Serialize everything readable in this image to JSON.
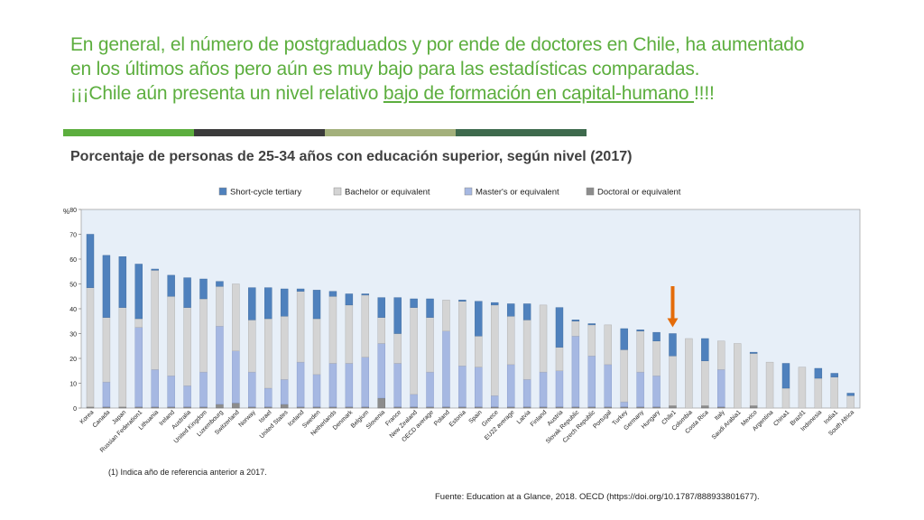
{
  "headline": {
    "line1": "En general, el número de postgraduados y por ende de doctores en Chile, ha aumentado",
    "line2": "en los últimos años pero aún es muy bajo para las estadísticas comparadas.",
    "line3_before": "¡¡¡Chile aún presenta un nivel relativo ",
    "line3_underlined": "bajo de formación en capital-humano ",
    "line3_after": "!!!!"
  },
  "colors": {
    "headline": "#5cae3e",
    "divider_segments": [
      "#5cae3e",
      "#3b3b3b",
      "#a3b07b",
      "#3e6a4d"
    ],
    "short_cycle": "#4f81bd",
    "bachelor": "#d4d4d4",
    "master": "#a6b8e2",
    "doctoral": "#8c8c8c",
    "arrow": "#e46c0a",
    "plot_bg": "#e7eff8"
  },
  "subtitle": "Porcentaje de personas de 25-34 años con educación superior, según nivel (2017)",
  "footnote": "(1) Indica año de referencia anterior a 2017.",
  "source": "Fuente:  Education at a Glance, 2018. OECD (https://doi.org/10.1787/888933801677).",
  "chart_data": {
    "type": "bar",
    "stacked": true,
    "ylabel": "%",
    "ylim": [
      0,
      80
    ],
    "yticks": [
      0,
      10,
      20,
      30,
      40,
      50,
      60,
      70,
      80
    ],
    "legend_position": "top",
    "highlight_category": "Chile1",
    "categories": [
      "Korea",
      "Canada",
      "Japan",
      "Russian Federation1",
      "Lithuania",
      "Ireland",
      "Australia",
      "United Kingdom",
      "Luxembourg",
      "Switzerland",
      "Norway",
      "Israel",
      "United States",
      "Iceland",
      "Sweden",
      "Netherlands",
      "Denmark",
      "Belgium",
      "Slovenia",
      "France",
      "New Zealand",
      "OECD average",
      "Poland",
      "Estonia",
      "Spain",
      "Greece",
      "EU22 average",
      "Latvia",
      "Finland",
      "Austria",
      "Slovak Republic",
      "Czech Republic",
      "Portugal",
      "Turkey",
      "Germany",
      "Hungary",
      "Chile1",
      "Colombia",
      "Costa Rica",
      "Italy",
      "Saudi Arabia1",
      "Mexico",
      "Argentina",
      "China1",
      "Brazil1",
      "Indonesia",
      "India1",
      "South Africa"
    ],
    "series": [
      {
        "name": "Doctoral or equivalent",
        "values": [
          0.5,
          0.5,
          0.5,
          0.5,
          0.5,
          0.5,
          0.5,
          0.5,
          1.5,
          2.0,
          0.5,
          0.5,
          1.5,
          0.5,
          0.5,
          0.5,
          0.5,
          0.5,
          4.0,
          0.5,
          0.5,
          0.5,
          0.5,
          0.5,
          0.5,
          0.5,
          0.5,
          0.5,
          0.5,
          0.5,
          0.5,
          0.5,
          0.5,
          0.5,
          0.5,
          0.5,
          1.0,
          0.0,
          1.0,
          0.5,
          0.0,
          1.0,
          0.0,
          0.0,
          0.0,
          0.0,
          0.0,
          0.0
        ]
      },
      {
        "name": "Master's or equivalent",
        "values": [
          0.0,
          10.0,
          0.0,
          32.0,
          15.0,
          12.5,
          8.5,
          14.0,
          31.5,
          21.0,
          14.0,
          7.5,
          10.0,
          18.0,
          13.0,
          17.5,
          17.5,
          20.0,
          22.0,
          17.5,
          5.0,
          14.0,
          30.5,
          16.5,
          16.0,
          4.5,
          17.0,
          11.0,
          14.0,
          14.5,
          28.5,
          20.5,
          17.0,
          2.0,
          14.0,
          12.5,
          0.0,
          0.0,
          0.0,
          15.0,
          0.0,
          0.0,
          0.0,
          0.0,
          0.0,
          0.0,
          0.0,
          0.0
        ]
      },
      {
        "name": "Bachelor or equivalent",
        "values": [
          48.0,
          26.0,
          40.0,
          3.5,
          40.0,
          32.0,
          31.5,
          29.5,
          16.0,
          27.0,
          21.0,
          28.0,
          25.5,
          28.5,
          22.5,
          27.0,
          23.5,
          25.0,
          10.5,
          12.0,
          35.0,
          22.0,
          12.5,
          26.0,
          12.5,
          36.5,
          19.5,
          24.0,
          27.0,
          9.5,
          6.0,
          12.5,
          16.0,
          21.0,
          16.5,
          14.0,
          20.0,
          28.0,
          18.0,
          11.5,
          26.0,
          21.0,
          18.5,
          8.0,
          16.5,
          12.0,
          12.5,
          5.0
        ]
      },
      {
        "name": "Short-cycle tertiary",
        "values": [
          21.5,
          25.0,
          20.5,
          22.0,
          0.5,
          8.5,
          12.0,
          8.0,
          2.0,
          0.0,
          13.0,
          12.5,
          11.0,
          1.0,
          11.5,
          2.0,
          4.5,
          0.5,
          8.0,
          14.5,
          3.5,
          7.5,
          0.0,
          0.5,
          14.0,
          1.0,
          5.0,
          6.5,
          0.0,
          16.0,
          0.5,
          0.5,
          0.0,
          8.5,
          0.5,
          3.5,
          9.0,
          0.0,
          9.0,
          0.0,
          0.0,
          0.5,
          0.0,
          10.0,
          0.0,
          4.0,
          1.5,
          1.0
        ]
      }
    ]
  }
}
